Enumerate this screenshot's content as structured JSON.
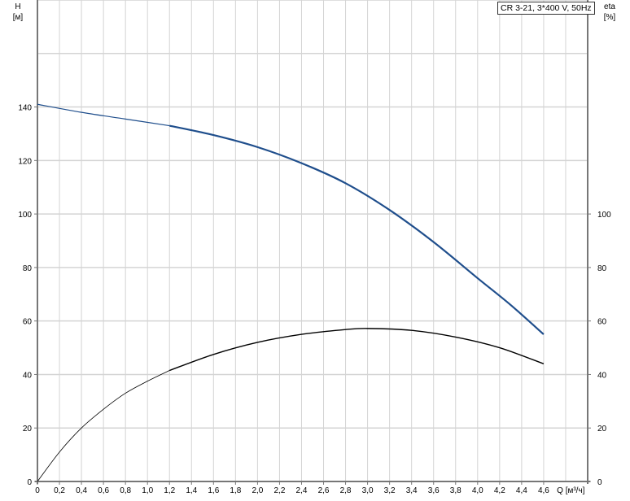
{
  "chart_data": {
    "type": "line",
    "title": "CR 3-21, 3*400 V, 50Hz",
    "xlabel": "Q [м³/ч]",
    "ylabel_left": "H",
    "ylabel_left_unit": "[м]",
    "ylabel_right": "eta",
    "ylabel_right_unit": "[%]",
    "xlim": [
      0,
      5.0
    ],
    "ylim": [
      0,
      180
    ],
    "grid": true,
    "x_ticks": [
      "0",
      "0,2",
      "0,4",
      "0,6",
      "0,8",
      "1,0",
      "1,2",
      "1,4",
      "1,6",
      "1,8",
      "2,0",
      "2,2",
      "2,4",
      "2,6",
      "2,8",
      "3,0",
      "3,2",
      "3,4",
      "3,6",
      "3,8",
      "4,0",
      "4,2",
      "4,4",
      "4,6"
    ],
    "y_left_ticks": [
      "0",
      "20",
      "40",
      "60",
      "80",
      "100",
      "120",
      "140"
    ],
    "y_right_ticks": [
      "0",
      "20",
      "40",
      "60",
      "80",
      "100"
    ],
    "series": [
      {
        "key": "head",
        "color": "#1f4e8c",
        "x": [
          0,
          0.4,
          0.8,
          1.2,
          1.6,
          2.0,
          2.4,
          2.8,
          3.2,
          3.6,
          4.0,
          4.3,
          4.6
        ],
        "y": [
          141,
          138,
          135.5,
          133,
          129.5,
          125,
          119,
          111.5,
          101.5,
          89.5,
          76,
          66,
          55
        ]
      },
      {
        "key": "eta",
        "color": "#000000",
        "x": [
          0,
          0.2,
          0.4,
          0.6,
          0.8,
          1.0,
          1.2,
          1.6,
          2.0,
          2.4,
          2.8,
          3.0,
          3.4,
          3.8,
          4.2,
          4.6
        ],
        "y": [
          0,
          11,
          20,
          27,
          33,
          37.5,
          41.5,
          47.5,
          52,
          55,
          56.8,
          57.2,
          56.5,
          54,
          50,
          44
        ]
      }
    ]
  }
}
